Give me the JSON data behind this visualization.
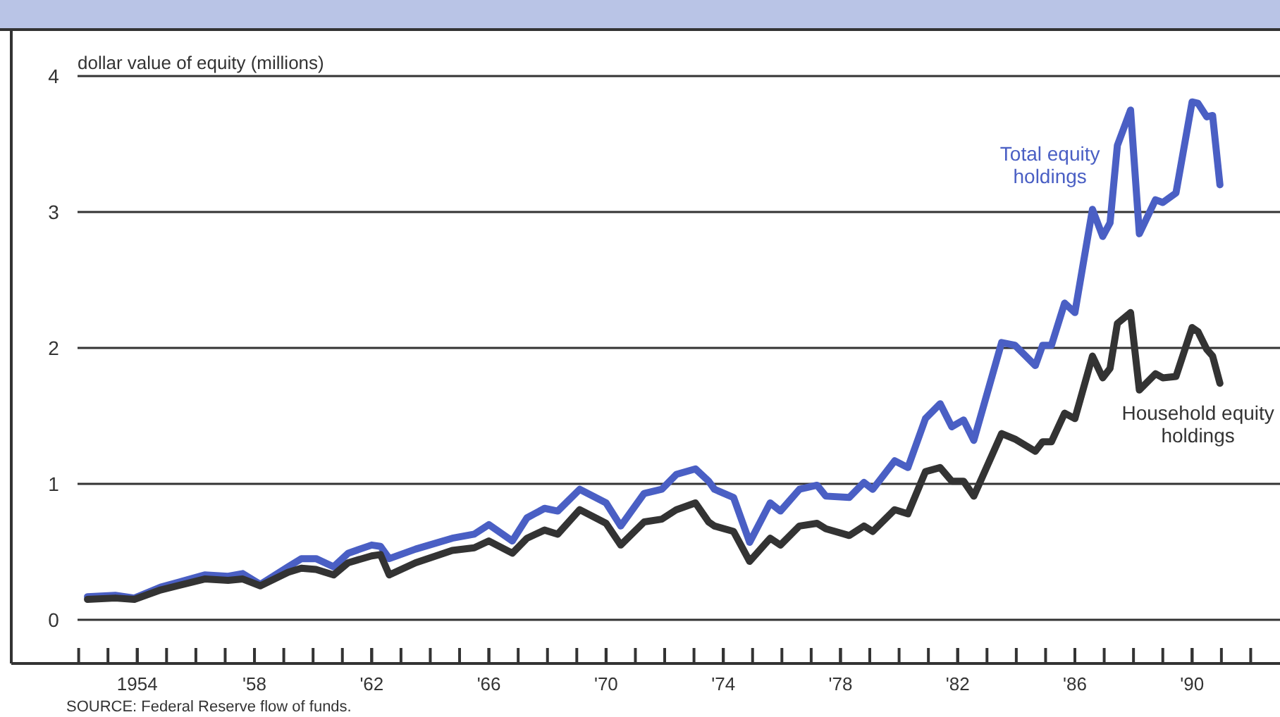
{
  "chart_data": {
    "type": "line",
    "ylabel": "dollar value of equity (millions)",
    "annotations": [
      "SOURCE: Federal Reserve flow of funds."
    ],
    "x": [
      1952.3,
      1953.25,
      1953.9,
      1954.8,
      1956.3,
      1957.1,
      1957.6,
      1958.2,
      1959.15,
      1959.6,
      1960.1,
      1960.7,
      1961.2,
      1962.0,
      1962.3,
      1962.6,
      1963.5,
      1964.75,
      1965.5,
      1966.0,
      1966.8,
      1967.3,
      1967.9,
      1968.35,
      1969.1,
      1970.0,
      1970.5,
      1971.3,
      1971.9,
      1972.4,
      1973.05,
      1973.5,
      1973.7,
      1974.35,
      1974.9,
      1975.6,
      1975.95,
      1976.6,
      1977.2,
      1977.5,
      1978.3,
      1978.8,
      1979.1,
      1979.85,
      1980.3,
      1980.9,
      1981.4,
      1981.8,
      1982.2,
      1982.55,
      1983.5,
      1983.95,
      1984.65,
      1984.9,
      1985.2,
      1985.65,
      1986.0,
      1986.6,
      1986.95,
      1987.2,
      1987.45,
      1987.9,
      1988.2,
      1988.75,
      1989.0,
      1989.45,
      1990.0,
      1990.2,
      1990.5,
      1990.7,
      1990.95
    ],
    "series": [
      {
        "name": "Total equity holdings",
        "color": "#4a5fc4",
        "values": [
          0.17,
          0.18,
          0.16,
          0.24,
          0.33,
          0.32,
          0.34,
          0.26,
          0.39,
          0.45,
          0.45,
          0.39,
          0.49,
          0.55,
          0.54,
          0.45,
          0.52,
          0.6,
          0.63,
          0.7,
          0.58,
          0.75,
          0.82,
          0.8,
          0.96,
          0.86,
          0.69,
          0.93,
          0.96,
          1.07,
          1.11,
          1.02,
          0.96,
          0.9,
          0.57,
          0.86,
          0.8,
          0.96,
          0.99,
          0.91,
          0.9,
          1.01,
          0.96,
          1.17,
          1.12,
          1.48,
          1.59,
          1.42,
          1.47,
          1.32,
          2.04,
          2.02,
          1.87,
          2.02,
          2.02,
          2.33,
          2.26,
          3.02,
          2.82,
          2.92,
          3.49,
          3.75,
          2.84,
          3.09,
          3.07,
          3.14,
          3.81,
          3.8,
          3.7,
          3.71,
          3.2
        ]
      },
      {
        "name": "Household equity holdings",
        "color": "#333333",
        "values": [
          0.15,
          0.16,
          0.15,
          0.22,
          0.3,
          0.29,
          0.3,
          0.25,
          0.35,
          0.38,
          0.37,
          0.33,
          0.42,
          0.47,
          0.48,
          0.33,
          0.42,
          0.51,
          0.53,
          0.58,
          0.49,
          0.6,
          0.66,
          0.63,
          0.81,
          0.71,
          0.55,
          0.72,
          0.74,
          0.81,
          0.86,
          0.72,
          0.69,
          0.65,
          0.43,
          0.6,
          0.55,
          0.69,
          0.71,
          0.67,
          0.62,
          0.69,
          0.65,
          0.81,
          0.78,
          1.09,
          1.12,
          1.02,
          1.02,
          0.91,
          1.37,
          1.33,
          1.24,
          1.31,
          1.31,
          1.52,
          1.48,
          1.94,
          1.78,
          1.85,
          2.18,
          2.26,
          1.69,
          1.81,
          1.78,
          1.79,
          2.15,
          2.12,
          1.99,
          1.94,
          1.74
        ]
      }
    ],
    "xlim": [
      1949.7,
      1993
    ],
    "ylim": [
      0,
      4
    ],
    "yticks": [
      0,
      1,
      2,
      3,
      4
    ],
    "xticks": [
      1954,
      {
        "value": 1958,
        "label": "'58"
      },
      {
        "value": 1962,
        "label": "'62"
      },
      {
        "value": 1966,
        "label": "'66"
      },
      {
        "value": 1970,
        "label": "'70"
      },
      {
        "value": 1974,
        "label": "'74"
      },
      {
        "value": 1978,
        "label": "'78"
      },
      {
        "value": 1982,
        "label": "'82"
      },
      {
        "value": 1986,
        "label": "'86"
      },
      {
        "value": 1990,
        "label": "'90"
      }
    ],
    "grid": "y",
    "legend": false,
    "line_style": "solid",
    "marker": "none"
  }
}
